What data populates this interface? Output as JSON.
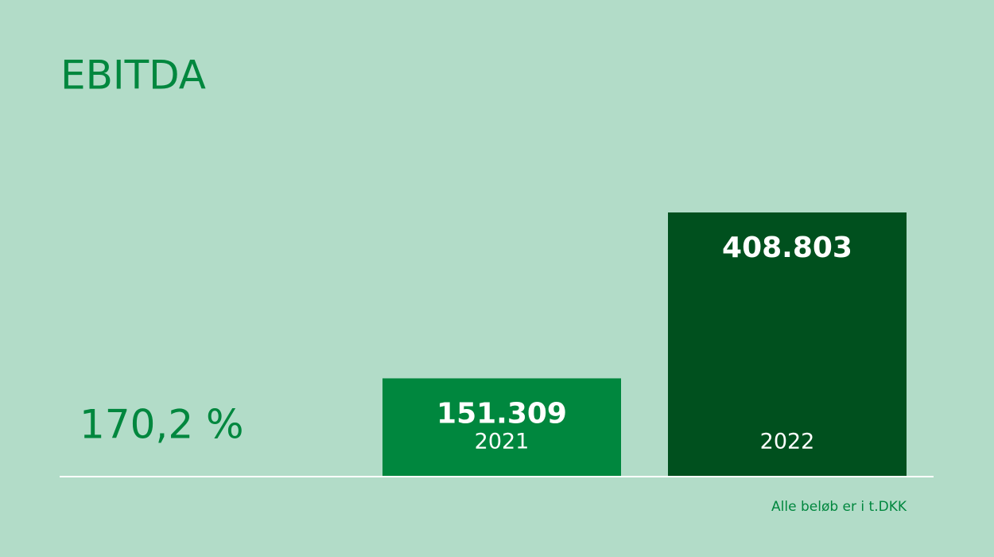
{
  "chart_data": {
    "type": "bar",
    "title": "EBITDA",
    "categories": [
      "2021",
      "2022"
    ],
    "values": [
      151309,
      408803
    ],
    "value_labels": [
      "151.309",
      "408.803"
    ],
    "colors": [
      "#00873e",
      "#00501e"
    ],
    "annotation": "170,2 %",
    "footnote": "Alle beløb er i t.DKK"
  }
}
